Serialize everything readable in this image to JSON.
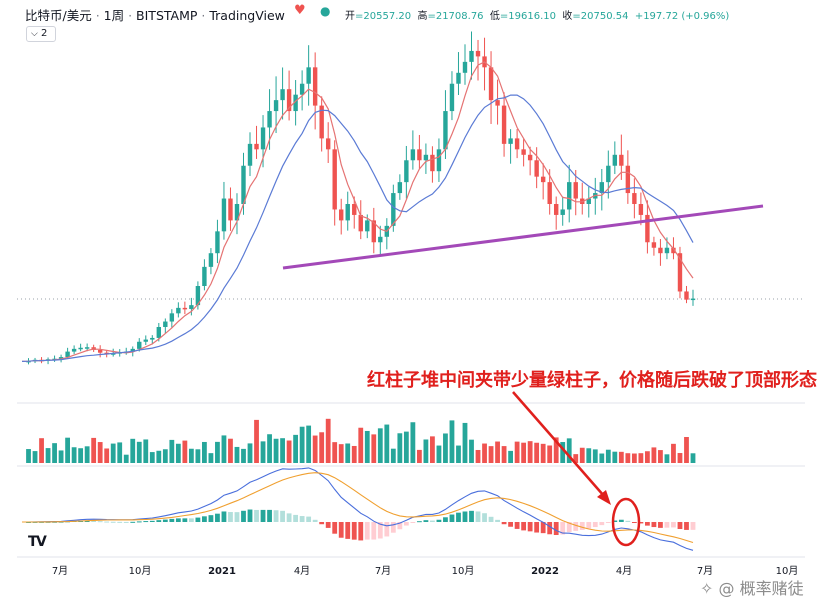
{
  "header": {
    "symbol": "比特币/美元",
    "interval": "1周",
    "exchange": "BITSTAMP",
    "platform": "TradingView",
    "open_label": "开",
    "open_value": "=20557.20",
    "high_label": "高",
    "high_value": "=21708.76",
    "low_label": "低",
    "low_value": "=19616.10",
    "close_label": "收",
    "close_value": "=20750.54",
    "change": "+197.72 (+0.96%)"
  },
  "indicator_toggle": {
    "label": "2"
  },
  "annotation": "红柱子堆中间夹带少量绿柱子，价格随后跌破了顶部形态",
  "watermark": "概率赌徒",
  "colors": {
    "up": "#26a69a",
    "down": "#ef5350",
    "ma_fast": "#e57373",
    "ma_slow": "#5b7bd5",
    "neckline": "#a349b8",
    "macd": "#4a6fdc",
    "signal": "#f0a030",
    "annotation": "#e0201d"
  },
  "chart_data": {
    "type": "candlestick",
    "x_ticks": [
      "7月",
      "10月",
      "2021",
      "4月",
      "7月",
      "10月",
      "2022",
      "4月",
      "7月",
      "10月"
    ],
    "last_price_line": true,
    "annotations": [
      "颈线 (neckline)",
      "红圈标注 MACD 交叉"
    ],
    "price_path": [
      9200,
      9300,
      9500,
      9400,
      9600,
      9700,
      10000,
      11000,
      11500,
      11700,
      11800,
      11300,
      10800,
      10500,
      10700,
      10900,
      11000,
      11500,
      12800,
      13200,
      13500,
      15500,
      16500,
      18000,
      19000,
      18800,
      19500,
      23000,
      26500,
      29000,
      33000,
      39000,
      35000,
      38000,
      45000,
      49000,
      48000,
      52000,
      55000,
      57000,
      59000,
      55000,
      58000,
      60000,
      63000,
      56000,
      50000,
      48000,
      37000,
      35000,
      38000,
      36000,
      33000,
      35000,
      31000,
      32000,
      34000,
      40000,
      42000,
      46000,
      48000,
      46000,
      47000,
      44000,
      48000,
      55000,
      60000,
      62000,
      64000,
      66000,
      65000,
      63000,
      57000,
      56000,
      49000,
      50000,
      48000,
      47000,
      46000,
      43000,
      42000,
      38000,
      36000,
      37000,
      42000,
      39000,
      38000,
      39000,
      40000,
      42000,
      45000,
      47000,
      45000,
      40000,
      38000,
      36000,
      31000,
      30000,
      29000,
      30000,
      29000,
      22000,
      20500,
      20700
    ]
  }
}
